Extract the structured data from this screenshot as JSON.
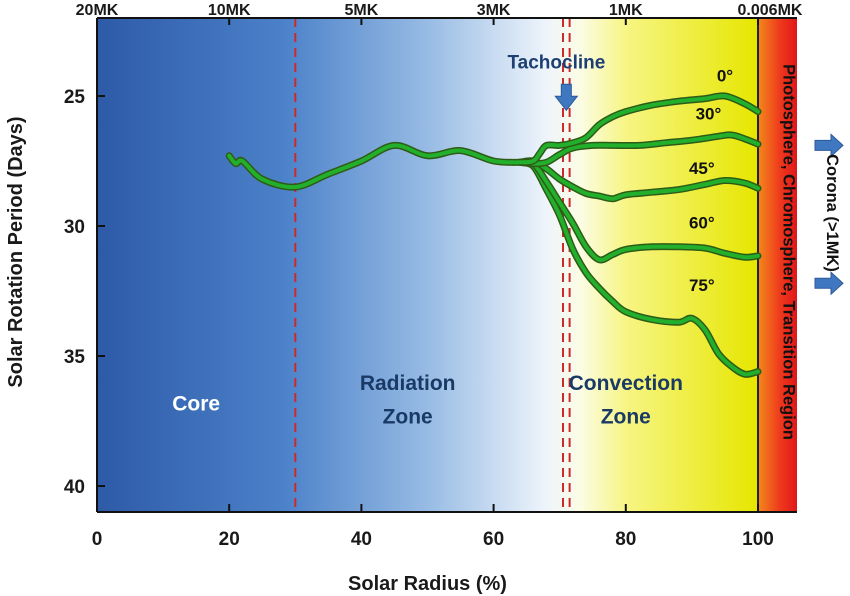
{
  "chart_data": {
    "type": "line",
    "title": "",
    "xlabel": "Solar Radius (%)",
    "ylabel": "Solar Rotation Period (Days)",
    "xlim": [
      0,
      106
    ],
    "ylim": [
      41,
      22
    ],
    "x_ticks": [
      "0",
      "20",
      "40",
      "60",
      "80",
      "100"
    ],
    "x_tick_values": [
      0,
      20,
      40,
      60,
      80,
      100
    ],
    "y_ticks": [
      "25",
      "30",
      "35",
      "40"
    ],
    "y_tick_values": [
      25,
      30,
      35,
      40
    ],
    "top_axis": {
      "labels": [
        "20MK",
        "10MK",
        "5MK",
        "3MK",
        "1MK",
        "0.006MK"
      ],
      "positions": [
        0,
        20,
        40,
        60,
        80,
        100
      ]
    },
    "zones": [
      {
        "name": "Core",
        "label_x": 15
      },
      {
        "name": "Radiation",
        "name2": "Zone",
        "label_x": 47
      },
      {
        "name": "Convection",
        "name2": "Zone",
        "label_x": 80
      }
    ],
    "boundaries": [
      30,
      70.5,
      71.5
    ],
    "side_label": "Photosphere, Chromosphere, Transition Region",
    "corona_label": "Corona (>1MK)",
    "annotation": "Tachocline",
    "series": [
      {
        "name": "0°",
        "x": [
          20,
          21,
          22,
          25,
          30,
          35,
          40,
          45,
          50,
          55,
          60,
          64,
          66,
          67,
          68,
          70,
          72,
          74,
          76,
          78,
          80,
          84,
          88,
          92,
          95,
          98,
          100
        ],
        "y": [
          27.3,
          27.6,
          27.5,
          28.2,
          28.5,
          28.0,
          27.5,
          26.9,
          27.3,
          27.1,
          27.5,
          27.55,
          27.5,
          27.2,
          26.9,
          26.9,
          26.8,
          26.6,
          26.1,
          25.8,
          25.6,
          25.35,
          25.2,
          25.1,
          25.0,
          25.3,
          25.6
        ]
      },
      {
        "name": "30°",
        "x": [
          64,
          66,
          68,
          70,
          72,
          75,
          78,
          82,
          86,
          90,
          94,
          96,
          98,
          100
        ],
        "y": [
          27.55,
          27.6,
          27.55,
          27.25,
          27.0,
          26.9,
          26.9,
          26.9,
          26.8,
          26.7,
          26.55,
          26.5,
          26.65,
          26.85
        ]
      },
      {
        "name": "45°",
        "x": [
          64,
          66,
          68,
          70,
          72,
          74,
          76,
          78,
          80,
          84,
          88,
          92,
          95,
          98,
          100
        ],
        "y": [
          27.55,
          27.5,
          27.8,
          28.2,
          28.5,
          28.75,
          28.85,
          28.95,
          28.8,
          28.7,
          28.6,
          28.4,
          28.25,
          28.35,
          28.55
        ]
      },
      {
        "name": "60°",
        "x": [
          64,
          66,
          68,
          70,
          72,
          74,
          76,
          78,
          80,
          84,
          88,
          92,
          95,
          98,
          100
        ],
        "y": [
          27.55,
          27.6,
          28.3,
          29.1,
          29.9,
          30.8,
          31.3,
          31.1,
          30.9,
          30.8,
          30.8,
          30.85,
          31.05,
          31.2,
          31.15
        ]
      },
      {
        "name": "75°",
        "x": [
          64,
          66,
          68,
          70,
          72,
          74,
          76,
          78,
          80,
          84,
          88,
          90,
          92,
          94,
          96,
          98,
          100
        ],
        "y": [
          27.55,
          27.7,
          28.6,
          29.6,
          30.9,
          31.8,
          32.4,
          32.9,
          33.3,
          33.6,
          33.7,
          33.55,
          34.0,
          34.9,
          35.4,
          35.7,
          35.6
        ]
      }
    ],
    "series_label_positions": [
      [
        95,
        24.45
      ],
      [
        92.5,
        25.9
      ],
      [
        91.5,
        28.0
      ],
      [
        91.5,
        30.1
      ],
      [
        91.5,
        32.5
      ]
    ],
    "colors": {
      "line": "#22b02c",
      "line_edge": "#2e5b16",
      "boundary": "#cc2a2a",
      "arrow": "#3f78c0"
    }
  }
}
